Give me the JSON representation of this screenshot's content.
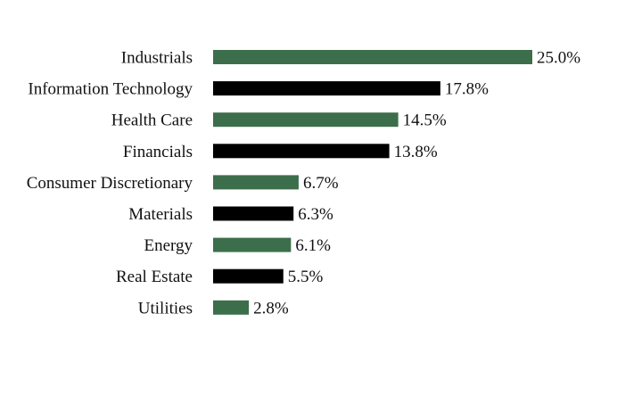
{
  "chart_data": {
    "type": "bar",
    "orientation": "horizontal",
    "categories": [
      "Industrials",
      "Information Technology",
      "Health Care",
      "Financials",
      "Consumer Discretionary",
      "Materials",
      "Energy",
      "Real Estate",
      "Utilities"
    ],
    "values": [
      25.0,
      17.8,
      14.5,
      13.8,
      6.7,
      6.3,
      6.1,
      5.5,
      2.8
    ],
    "value_labels": [
      "25.0%",
      "17.8%",
      "14.5%",
      "13.8%",
      "6.7%",
      "6.3%",
      "6.1%",
      "5.5%",
      "2.8%"
    ],
    "bar_colors": [
      "#3d6e4c",
      "#000000"
    ],
    "title": "",
    "xlabel": "",
    "ylabel": "",
    "xlim": [
      0,
      25
    ],
    "grid": false,
    "legend": "none"
  }
}
